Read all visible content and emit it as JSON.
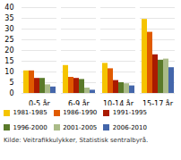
{
  "chart_data": {
    "type": "bar",
    "categories": [
      "0-5 år",
      "6-9 år",
      "10-14 år",
      "15-17 år"
    ],
    "series": [
      {
        "name": "1981-1985",
        "color": "#F5C400",
        "values": [
          10.5,
          13.0,
          14.0,
          34.5
        ]
      },
      {
        "name": "1986-1990",
        "color": "#E05A00",
        "values": [
          10.5,
          7.5,
          11.5,
          28.5
        ]
      },
      {
        "name": "1991-1995",
        "color": "#AA1A00",
        "values": [
          7.0,
          7.0,
          6.0,
          18.0
        ]
      },
      {
        "name": "1996-2000",
        "color": "#5A7A2A",
        "values": [
          7.0,
          6.5,
          5.0,
          15.5
        ]
      },
      {
        "name": "2001-2005",
        "color": "#AABB88",
        "values": [
          4.0,
          2.5,
          4.5,
          16.0
        ]
      },
      {
        "name": "2006-2010",
        "color": "#4466AA",
        "values": [
          3.0,
          1.5,
          3.5,
          12.0
        ]
      }
    ],
    "ylim": [
      0,
      40
    ],
    "yticks": [
      0,
      5,
      10,
      15,
      20,
      25,
      30,
      35,
      40
    ],
    "grid": true,
    "legend": "bottom",
    "annotations": [
      "Kilde: Veitrafikkulykker, Statistisk sentralbyrå."
    ]
  }
}
